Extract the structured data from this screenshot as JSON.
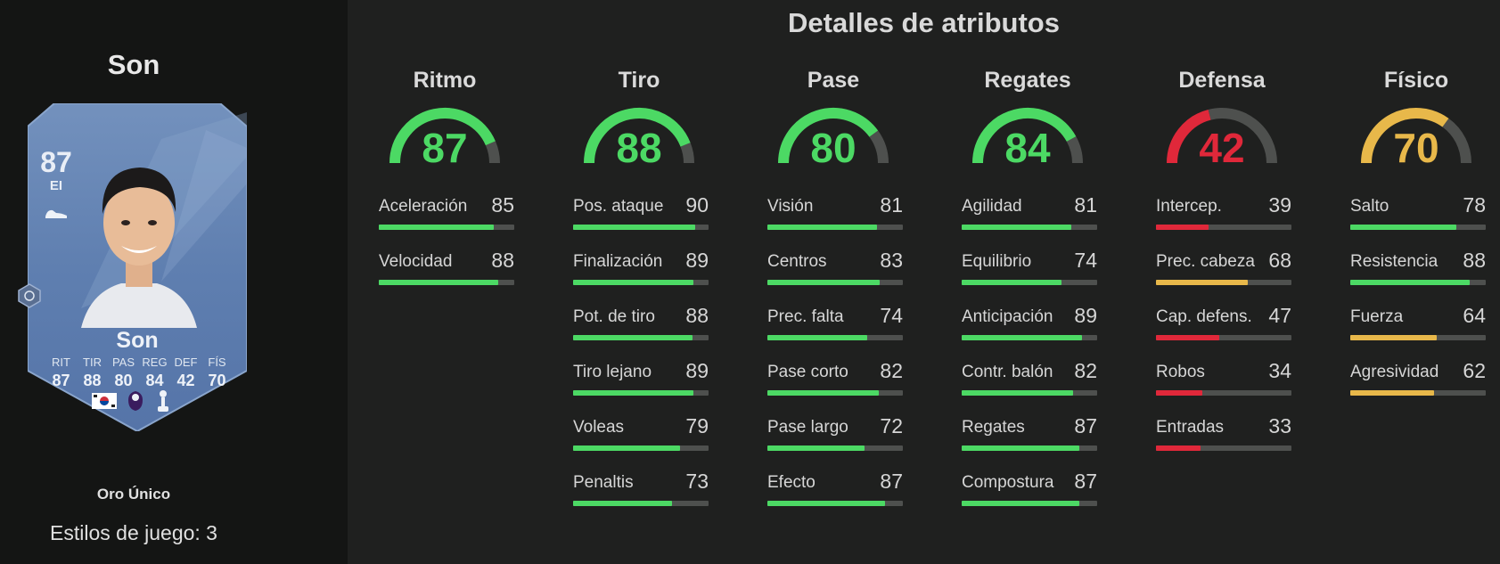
{
  "player": {
    "name": "Son",
    "card_rating": "87",
    "card_position": "EI",
    "card_name": "Son",
    "card_type": "Oro Único",
    "playstyles": "Estilos de juego: 3",
    "card_stats": [
      {
        "label": "RIT",
        "value": "87"
      },
      {
        "label": "TIR",
        "value": "88"
      },
      {
        "label": "PAS",
        "value": "80"
      },
      {
        "label": "REG",
        "value": "84"
      },
      {
        "label": "DEF",
        "value": "42"
      },
      {
        "label": "FÍS",
        "value": "70"
      }
    ]
  },
  "section_title": "Detalles de atributos",
  "colors": {
    "green": "#4cd964",
    "red": "#e0283a",
    "yellow": "#e8b84a",
    "track": "#4e504e"
  },
  "categories": [
    {
      "name": "Ritmo",
      "value": 87,
      "color": "#4cd964",
      "attributes": [
        {
          "name": "Aceleración",
          "value": 85,
          "color": "#4cd964"
        },
        {
          "name": "Velocidad",
          "value": 88,
          "color": "#4cd964"
        }
      ]
    },
    {
      "name": "Tiro",
      "value": 88,
      "color": "#4cd964",
      "attributes": [
        {
          "name": "Pos. ataque",
          "value": 90,
          "color": "#4cd964"
        },
        {
          "name": "Finalización",
          "value": 89,
          "color": "#4cd964"
        },
        {
          "name": "Pot. de tiro",
          "value": 88,
          "color": "#4cd964"
        },
        {
          "name": "Tiro lejano",
          "value": 89,
          "color": "#4cd964"
        },
        {
          "name": "Voleas",
          "value": 79,
          "color": "#4cd964"
        },
        {
          "name": "Penaltis",
          "value": 73,
          "color": "#4cd964"
        }
      ]
    },
    {
      "name": "Pase",
      "value": 80,
      "color": "#4cd964",
      "attributes": [
        {
          "name": "Visión",
          "value": 81,
          "color": "#4cd964"
        },
        {
          "name": "Centros",
          "value": 83,
          "color": "#4cd964"
        },
        {
          "name": "Prec. falta",
          "value": 74,
          "color": "#4cd964"
        },
        {
          "name": "Pase corto",
          "value": 82,
          "color": "#4cd964"
        },
        {
          "name": "Pase largo",
          "value": 72,
          "color": "#4cd964"
        },
        {
          "name": "Efecto",
          "value": 87,
          "color": "#4cd964"
        }
      ]
    },
    {
      "name": "Regates",
      "value": 84,
      "color": "#4cd964",
      "attributes": [
        {
          "name": "Agilidad",
          "value": 81,
          "color": "#4cd964"
        },
        {
          "name": "Equilibrio",
          "value": 74,
          "color": "#4cd964"
        },
        {
          "name": "Anticipación",
          "value": 89,
          "color": "#4cd964"
        },
        {
          "name": "Contr. balón",
          "value": 82,
          "color": "#4cd964"
        },
        {
          "name": "Regates",
          "value": 87,
          "color": "#4cd964"
        },
        {
          "name": "Compostura",
          "value": 87,
          "color": "#4cd964"
        }
      ]
    },
    {
      "name": "Defensa",
      "value": 42,
      "color": "#e0283a",
      "attributes": [
        {
          "name": "Intercep.",
          "value": 39,
          "color": "#e0283a"
        },
        {
          "name": "Prec. cabeza",
          "value": 68,
          "color": "#e8b84a"
        },
        {
          "name": "Cap. defens.",
          "value": 47,
          "color": "#e0283a"
        },
        {
          "name": "Robos",
          "value": 34,
          "color": "#e0283a"
        },
        {
          "name": "Entradas",
          "value": 33,
          "color": "#e0283a"
        }
      ]
    },
    {
      "name": "Físico",
      "value": 70,
      "color": "#e8b84a",
      "attributes": [
        {
          "name": "Salto",
          "value": 78,
          "color": "#4cd964"
        },
        {
          "name": "Resistencia",
          "value": 88,
          "color": "#4cd964"
        },
        {
          "name": "Fuerza",
          "value": 64,
          "color": "#e8b84a"
        },
        {
          "name": "Agresividad",
          "value": 62,
          "color": "#e8b84a"
        }
      ]
    }
  ]
}
